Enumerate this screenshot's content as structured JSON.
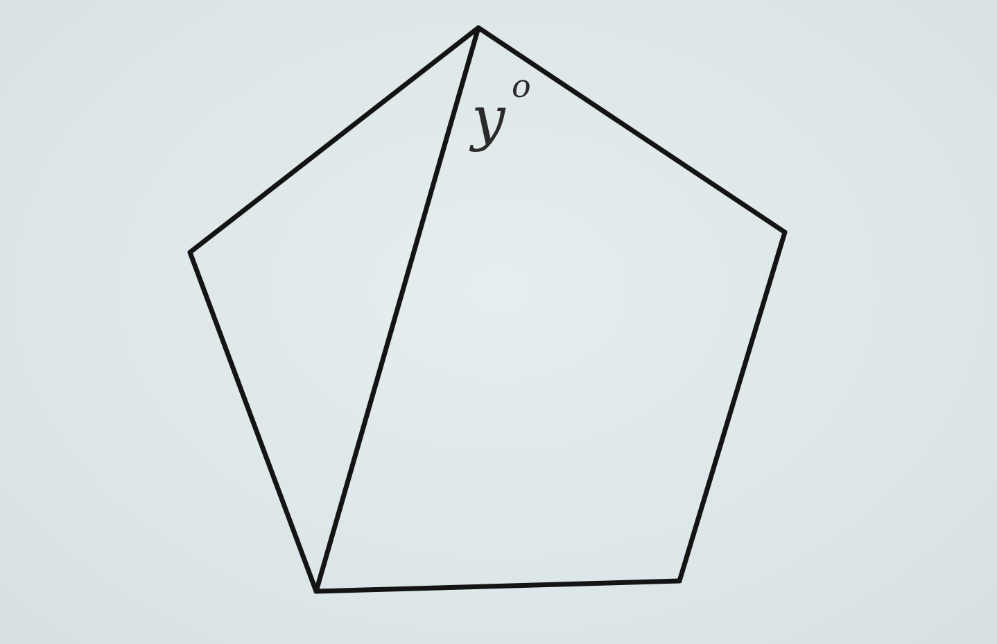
{
  "diagram": {
    "shape": "pentagon",
    "vertices": [
      "top",
      "right",
      "bottom-right",
      "bottom-left",
      "left"
    ],
    "diagonal": {
      "from": "top",
      "to": "bottom-left"
    },
    "angle_label": {
      "variable": "y",
      "degree_symbol": "o",
      "at_vertex": "top"
    },
    "colors": {
      "background": "#dfe8e9",
      "stroke": "#141414",
      "label": "#2a2a2a"
    }
  }
}
